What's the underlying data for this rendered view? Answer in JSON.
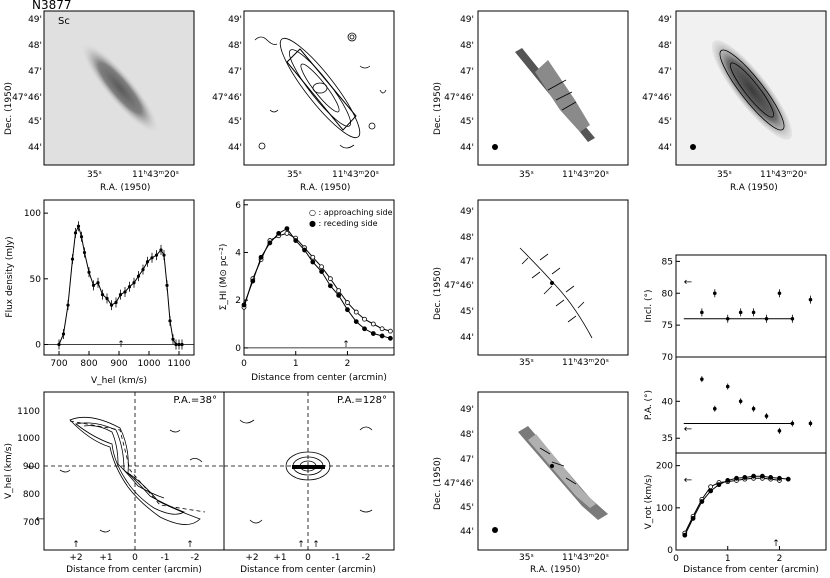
{
  "galaxy_id": "N3877",
  "morph_type": "Sc",
  "sky_axes": {
    "ra_label": "R.A. (1950)",
    "ra_label_alt": "R.A (1950)",
    "dec_label": "Dec. (1950)",
    "dec_ticks": [
      "49'",
      "48'",
      "47'",
      "47°46'",
      "45'",
      "44'"
    ],
    "ra_ticks": [
      "35ˢ",
      "11ʰ43ᵐ20ˢ"
    ]
  },
  "chart_data": [
    {
      "type": "line",
      "id": "global-profile",
      "xlabel": "V_hel (km/s)",
      "ylabel": "Flux density (mJy)",
      "xlim": [
        650,
        1150
      ],
      "ylim": [
        -8,
        110
      ],
      "xticks": [
        "700",
        "800",
        "900",
        "1000",
        "1100"
      ],
      "yticks": [
        "0",
        "50",
        "100"
      ],
      "series": [
        {
          "x": [
            700,
            715,
            730,
            745,
            755,
            765,
            775,
            785,
            800,
            815,
            830,
            845,
            860,
            875,
            890,
            905,
            920,
            935,
            950,
            965,
            980,
            995,
            1010,
            1025,
            1040,
            1050,
            1060,
            1070,
            1080,
            1090,
            1100,
            1110
          ],
          "y": [
            0,
            8,
            30,
            65,
            85,
            90,
            82,
            70,
            55,
            45,
            47,
            38,
            35,
            30,
            32,
            38,
            40,
            44,
            47,
            52,
            57,
            63,
            66,
            68,
            72,
            68,
            45,
            18,
            4,
            0,
            0,
            0
          ]
        }
      ],
      "annotations": [
        "↑"
      ]
    },
    {
      "type": "line",
      "id": "surface-density",
      "xlabel": "Distance from center (arcmin)",
      "ylabel": "Σ_HI (M⊙ pc⁻²)",
      "xlim": [
        0,
        2.9
      ],
      "ylim": [
        -0.3,
        6.2
      ],
      "xticks": [
        "0",
        "1",
        "2"
      ],
      "yticks": [
        "0",
        "2",
        "4",
        "6"
      ],
      "legend": [
        "○ : approaching side",
        "● : receding side"
      ],
      "series": [
        {
          "name": "approaching side",
          "x": [
            0.0,
            0.17,
            0.33,
            0.5,
            0.67,
            0.83,
            1.0,
            1.17,
            1.33,
            1.5,
            1.67,
            1.83,
            2.0,
            2.17,
            2.33,
            2.5,
            2.67,
            2.83
          ],
          "y": [
            1.7,
            2.9,
            3.7,
            4.5,
            4.7,
            4.8,
            4.6,
            4.2,
            3.8,
            3.4,
            2.9,
            2.4,
            1.9,
            1.5,
            1.2,
            1.0,
            0.8,
            0.7
          ]
        },
        {
          "name": "receding side",
          "x": [
            0.0,
            0.17,
            0.33,
            0.5,
            0.67,
            0.83,
            1.0,
            1.17,
            1.33,
            1.5,
            1.67,
            1.83,
            2.0,
            2.17,
            2.33,
            2.5,
            2.67,
            2.83
          ],
          "y": [
            1.8,
            2.8,
            3.8,
            4.4,
            4.8,
            5.0,
            4.5,
            4.1,
            3.6,
            3.2,
            2.6,
            2.2,
            1.6,
            1.1,
            0.8,
            0.6,
            0.5,
            0.4
          ]
        }
      ],
      "annotations": [
        "↑"
      ]
    },
    {
      "type": "scatter",
      "id": "inclination",
      "ylabel": "Incl. (°)",
      "xlim": [
        0,
        2.9
      ],
      "ylim": [
        70,
        86
      ],
      "yticks": [
        "70",
        "75",
        "80",
        "85"
      ],
      "series": [
        {
          "x": [
            0.5,
            0.75,
            1.0,
            1.25,
            1.5,
            1.75,
            2.0,
            2.25,
            2.6
          ],
          "y": [
            77,
            80,
            76,
            77,
            77,
            76,
            80,
            76,
            79
          ]
        }
      ],
      "annotations": [
        "←"
      ]
    },
    {
      "type": "scatter",
      "id": "position-angle",
      "ylabel": "P.A. (°)",
      "xlim": [
        0,
        2.9
      ],
      "ylim": [
        33,
        46
      ],
      "yticks": [
        "35",
        "40"
      ],
      "series": [
        {
          "x": [
            0.5,
            0.75,
            1.0,
            1.25,
            1.5,
            1.75,
            2.0,
            2.25,
            2.6
          ],
          "y": [
            43,
            39,
            42,
            40,
            39,
            38,
            36,
            37,
            37
          ]
        }
      ],
      "annotations": [
        "←"
      ]
    },
    {
      "type": "line",
      "id": "rotation-curve",
      "xlabel": "Distance from center (arcmin)",
      "ylabel": "V_rot (km/s)",
      "xlim": [
        0,
        2.9
      ],
      "ylim": [
        0,
        230
      ],
      "xticks": [
        "0",
        "1",
        "2"
      ],
      "yticks": [
        "0",
        "100",
        "200"
      ],
      "series": [
        {
          "name": "approaching",
          "x": [
            0.17,
            0.33,
            0.5,
            0.67,
            0.83,
            1.0,
            1.17,
            1.33,
            1.5,
            1.67,
            1.83,
            2.0
          ],
          "y": [
            40,
            80,
            120,
            150,
            160,
            162,
            165,
            168,
            170,
            170,
            168,
            165
          ]
        },
        {
          "name": "receding",
          "x": [
            0.17,
            0.33,
            0.5,
            0.67,
            0.83,
            1.0,
            1.17,
            1.33,
            1.5,
            1.67,
            1.83,
            2.0,
            2.17
          ],
          "y": [
            35,
            75,
            115,
            140,
            155,
            165,
            170,
            172,
            175,
            175,
            172,
            170,
            168
          ]
        }
      ],
      "annotations": [
        "←",
        "↑"
      ]
    }
  ],
  "pv_diagrams": [
    {
      "pa_label": "P.A.=38°",
      "xlabel": "Distance from center (arcmin)",
      "ylabel": "V_hel (km/s)",
      "xticks": [
        "+2",
        "+1",
        "0",
        "-1",
        "-2"
      ],
      "yticks": [
        "700",
        "800",
        "900",
        "1000",
        "1100"
      ],
      "annotations": [
        "↑",
        "↑",
        "←",
        "←"
      ]
    },
    {
      "pa_label": "P.A.=128°",
      "xlabel": "Distance from center (arcmin)",
      "xticks": [
        "+2",
        "+1",
        "0",
        "-1",
        "-2"
      ],
      "annotations": [
        "↑",
        "↑"
      ]
    }
  ],
  "colors": {
    "ink": "#000000",
    "optical_bg": "#e2e2e2",
    "galaxy_core": "#5e5e5e",
    "model_gray": "#8a8a8a"
  }
}
